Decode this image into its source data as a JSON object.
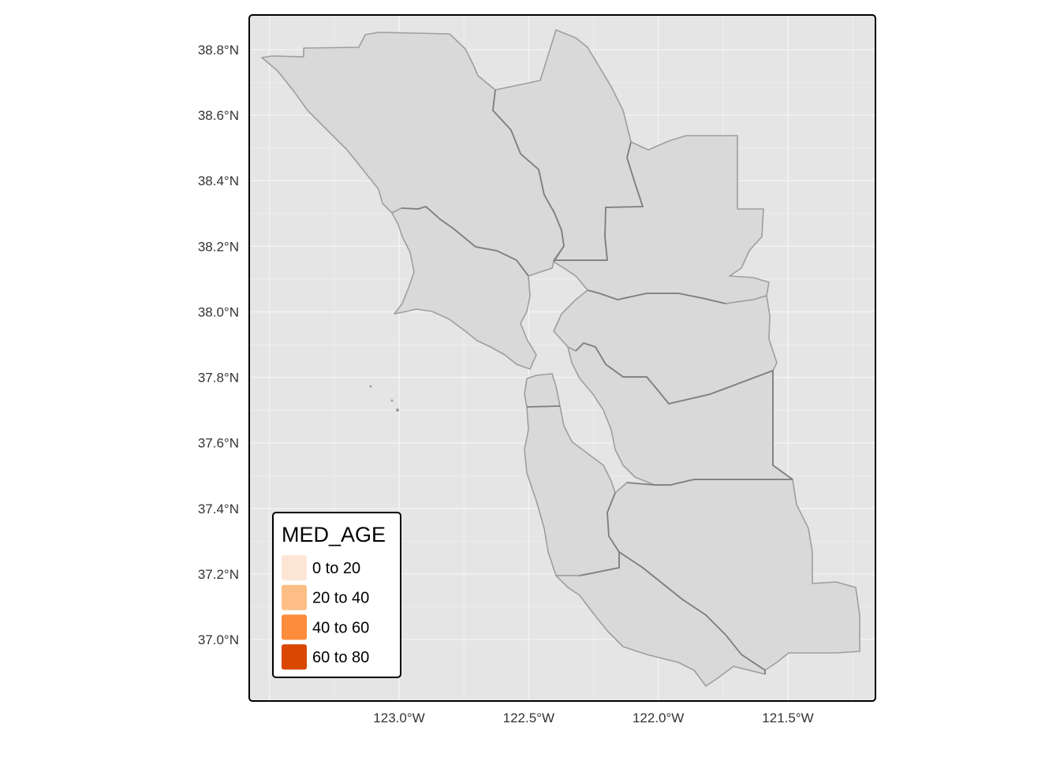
{
  "map": {
    "background_color": "#e5e5e5",
    "gridline_color": "#f2f2f2",
    "county_fill": "#d9d9d9",
    "lat_ticks": [
      {
        "value": 38.8,
        "label": "38.8°N"
      },
      {
        "value": 38.6,
        "label": "38.6°N"
      },
      {
        "value": 38.4,
        "label": "38.4°N"
      },
      {
        "value": 38.2,
        "label": "38.2°N"
      },
      {
        "value": 38.0,
        "label": "38.0°N"
      },
      {
        "value": 37.8,
        "label": "37.8°N"
      },
      {
        "value": 37.6,
        "label": "37.6°N"
      },
      {
        "value": 37.4,
        "label": "37.4°N"
      },
      {
        "value": 37.2,
        "label": "37.2°N"
      },
      {
        "value": 37.0,
        "label": "37.0°N"
      }
    ],
    "lon_ticks": [
      {
        "value": -123.0,
        "label": "123.0°W"
      },
      {
        "value": -122.5,
        "label": "122.5°W"
      },
      {
        "value": -122.0,
        "label": "122.0°W"
      },
      {
        "value": -121.5,
        "label": "121.5°W"
      }
    ]
  },
  "legend": {
    "title": "MED_AGE",
    "items": [
      {
        "label": "0 to 20",
        "color": "#fee6d6"
      },
      {
        "label": "20 to 40",
        "color": "#fdbe86"
      },
      {
        "label": "40 to 60",
        "color": "#fd8c3c"
      },
      {
        "label": "60 to 80",
        "color": "#d94700"
      }
    ]
  }
}
